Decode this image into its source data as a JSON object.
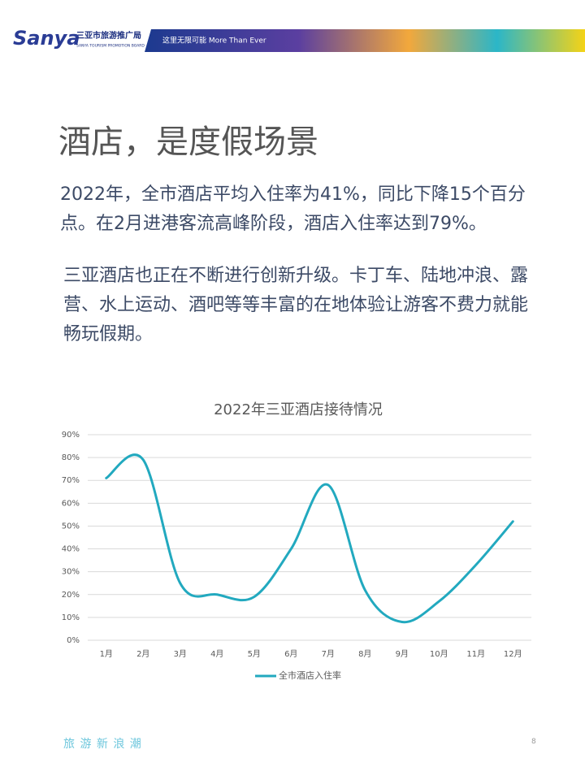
{
  "header": {
    "logo": "Sanya",
    "org_name": "三亚市旅游推广局",
    "org_name_en": "SANYA TOURISM PROMOTION BOARD",
    "slogan": "这里无限可能 More Than Ever"
  },
  "title": "酒店，是度假场景",
  "paragraphs": [
    "2022年，全市酒店平均入住率为41%，同比下降15个百分点。在2月进港客流高峰阶段，酒店入住率达到79%。",
    "三亚酒店也正在不断进行创新升级。卡丁车、陆地冲浪、露营、水上运动、酒吧等等丰富的在地体验让游客不费力就能畅玩假期。"
  ],
  "chart_data": {
    "type": "line",
    "title": "2022年三亚酒店接待情况",
    "categories": [
      "1月",
      "2月",
      "3月",
      "4月",
      "5月",
      "6月",
      "7月",
      "8月",
      "9月",
      "10月",
      "11月",
      "12月"
    ],
    "series": [
      {
        "name": "全市酒店入住率",
        "color": "#22a9bf",
        "values": [
          71,
          79,
          25,
          20,
          19,
          40,
          68,
          22,
          8,
          17,
          33,
          52
        ]
      }
    ],
    "ylim": [
      0,
      90
    ],
    "yticks": [
      {
        "value": 0,
        "label": "0%"
      },
      {
        "value": 10,
        "label": "10%"
      },
      {
        "value": 20,
        "label": "20%"
      },
      {
        "value": 30,
        "label": "30%"
      },
      {
        "value": 40,
        "label": "40%"
      },
      {
        "value": 50,
        "label": "50%"
      },
      {
        "value": 60,
        "label": "60%"
      },
      {
        "value": 70,
        "label": "70%"
      },
      {
        "value": 80,
        "label": "80%"
      },
      {
        "value": 90,
        "label": "90%"
      }
    ],
    "grid": true,
    "smooth": true,
    "legend": "bottom"
  },
  "footer": {
    "tagline": "旅 游 新 浪 潮",
    "page_number": 8
  }
}
